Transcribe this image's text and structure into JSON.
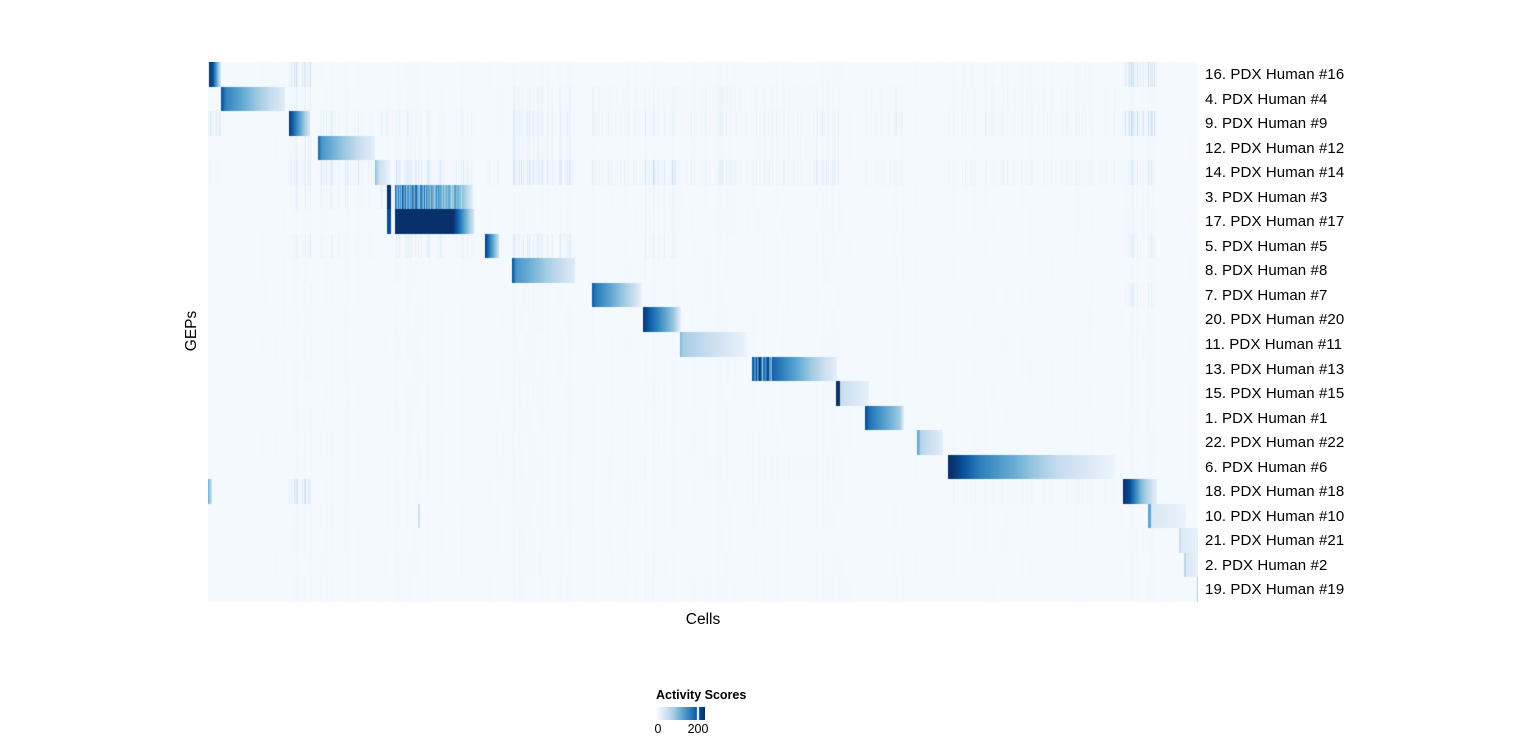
{
  "figure": {
    "x_axis_label": "Cells",
    "y_axis_label": "GEPs"
  },
  "legend": {
    "title": "Activity Scores",
    "tick_labels": [
      "0",
      "200"
    ],
    "tick_values": [
      0,
      200
    ],
    "tick_positions": [
      0,
      0.858
    ]
  },
  "colors": {
    "page_background": "#ffffff",
    "heatmap_background": "#f5f9fd",
    "text": "#000000",
    "colormap_name": "Blues",
    "colormap_stops": [
      "#f7fbff",
      "#deebf7",
      "#c6dbef",
      "#9ecae1",
      "#6baed6",
      "#4292c6",
      "#2171b5",
      "#08519c",
      "#08306b"
    ]
  },
  "chart_data": {
    "type": "heatmap",
    "title": "",
    "xlabel": "Cells",
    "ylabel": "GEPs",
    "value_label": "Activity Scores",
    "value_range": [
      0,
      233
    ],
    "base_value": 3,
    "global_noise": 5,
    "noise_seed": 42,
    "rows": [
      {
        "label": "16. PDX Human #16",
        "segments": [
          [
            0.001,
            0.005,
            235,
            205,
            0
          ],
          [
            0.005,
            0.0131,
            205,
            38,
            0
          ]
        ]
      },
      {
        "label": "4. PDX Human #4",
        "segments": [
          [
            0.0131,
            0.0182,
            212,
            158,
            0
          ],
          [
            0.0182,
            0.0778,
            158,
            26,
            0
          ]
        ]
      },
      {
        "label": "9. PDX Human #9",
        "segments": [
          [
            0.0818,
            0.0869,
            230,
            178,
            0
          ],
          [
            0.0869,
            0.103,
            178,
            40,
            0
          ]
        ]
      },
      {
        "label": "12. PDX Human #12",
        "segments": [
          [
            0.1111,
            0.1152,
            188,
            138,
            0
          ],
          [
            0.1152,
            0.1687,
            138,
            20,
            0
          ]
        ]
      },
      {
        "label": "14. PDX Human #14",
        "segments": [
          [
            0.1687,
            0.1727,
            98,
            52,
            0
          ],
          [
            0.1727,
            0.1848,
            52,
            12,
            0
          ]
        ]
      },
      {
        "label": "3. PDX Human #3",
        "segments": [
          [
            0.1808,
            0.1848,
            235,
            235,
            0
          ],
          [
            0.1889,
            0.2566,
            185,
            118,
            1
          ],
          [
            0.2566,
            0.2677,
            100,
            22,
            0
          ]
        ]
      },
      {
        "label": "17. PDX Human #17",
        "segments": [
          [
            0.1808,
            0.1848,
            208,
            208,
            0
          ],
          [
            0.1889,
            0.2475,
            235,
            235,
            0
          ],
          [
            0.2475,
            0.2687,
            235,
            42,
            0
          ]
        ]
      },
      {
        "label": "5. PDX Human #5",
        "segments": [
          [
            0.2798,
            0.2838,
            230,
            172,
            0
          ],
          [
            0.2838,
            0.2939,
            172,
            52,
            0
          ]
        ]
      },
      {
        "label": "8. PDX Human #8",
        "segments": [
          [
            0.3071,
            0.3111,
            214,
            142,
            0
          ],
          [
            0.3111,
            0.3707,
            142,
            28,
            0
          ]
        ]
      },
      {
        "label": "7. PDX Human #7",
        "segments": [
          [
            0.3879,
            0.3919,
            198,
            168,
            0
          ],
          [
            0.3919,
            0.4283,
            168,
            62,
            0
          ],
          [
            0.4283,
            0.4384,
            62,
            16,
            0
          ]
        ]
      },
      {
        "label": "20. PDX Human #20",
        "segments": [
          [
            0.4394,
            0.4434,
            233,
            206,
            0
          ],
          [
            0.4434,
            0.4707,
            206,
            88,
            0
          ],
          [
            0.4707,
            0.4778,
            88,
            18,
            0
          ]
        ]
      },
      {
        "label": "11. PDX Human #11",
        "segments": [
          [
            0.4768,
            0.4798,
            108,
            82,
            0
          ],
          [
            0.4798,
            0.5444,
            82,
            14,
            0
          ]
        ]
      },
      {
        "label": "13. PDX Human #13",
        "segments": [
          [
            0.5495,
            0.5707,
            208,
            186,
            1
          ],
          [
            0.5707,
            0.6354,
            186,
            20,
            0
          ]
        ]
      },
      {
        "label": "15. PDX Human #15",
        "segments": [
          [
            0.6343,
            0.6384,
            235,
            235,
            0
          ],
          [
            0.6384,
            0.6677,
            56,
            18,
            0
          ]
        ]
      },
      {
        "label": "1. PDX Human #1",
        "segments": [
          [
            0.6636,
            0.6687,
            212,
            172,
            0
          ],
          [
            0.6687,
            0.699,
            172,
            86,
            0
          ],
          [
            0.699,
            0.703,
            86,
            20,
            0
          ]
        ]
      },
      {
        "label": "22. PDX Human #22",
        "segments": [
          [
            0.7162,
            0.7192,
            128,
            100,
            0
          ],
          [
            0.7192,
            0.7424,
            72,
            24,
            0
          ]
        ]
      },
      {
        "label": "6. PDX Human #6",
        "segments": [
          [
            0.7475,
            0.7525,
            235,
            230,
            0
          ],
          [
            0.7525,
            0.7778,
            230,
            166,
            0
          ],
          [
            0.7778,
            0.86,
            166,
            56,
            0
          ],
          [
            0.86,
            0.9162,
            56,
            12,
            0
          ]
        ]
      },
      {
        "label": "18. PDX Human #18",
        "segments": [
          [
            0.0,
            0.004,
            118,
            45,
            0
          ],
          [
            0.9242,
            0.9313,
            235,
            206,
            0
          ],
          [
            0.9313,
            0.9424,
            206,
            106,
            0
          ],
          [
            0.9424,
            0.9586,
            106,
            20,
            0
          ]
        ]
      },
      {
        "label": "10. PDX Human #10",
        "segments": [
          [
            0.2121,
            0.2141,
            48,
            48,
            0
          ],
          [
            0.9495,
            0.9525,
            126,
            126,
            0
          ],
          [
            0.9525,
            0.9879,
            38,
            13,
            0
          ]
        ]
      },
      {
        "label": "21. PDX Human #21",
        "segments": [
          [
            0.9808,
            0.9828,
            56,
            56,
            0
          ],
          [
            0.9828,
            1.0,
            30,
            18,
            0
          ]
        ]
      },
      {
        "label": "2. PDX Human #2",
        "segments": [
          [
            0.9859,
            0.9879,
            66,
            66,
            0
          ],
          [
            0.9879,
            1.0,
            36,
            18,
            0
          ]
        ]
      },
      {
        "label": "19. PDX Human #19",
        "segments": [
          [
            0.9985,
            1.0,
            96,
            60,
            0
          ]
        ]
      }
    ],
    "texture_bands": [
      {
        "x0": 0.0,
        "x1": 0.0131,
        "default": 3,
        "rows": {
          "2": 42,
          "4": 14,
          "17": 0
        }
      },
      {
        "x0": 0.0808,
        "x1": 0.104,
        "default": 8,
        "rows": {
          "0": 52,
          "1": 22,
          "2": 0,
          "3": 24,
          "4": 38,
          "5": 18,
          "7": 26,
          "17": 52
        }
      },
      {
        "x0": 0.1111,
        "x1": 0.1687,
        "default": 7,
        "rows": {
          "2": 26,
          "3": 0,
          "4": 40,
          "5": 20,
          "7": 16
        }
      },
      {
        "x0": 0.1687,
        "x1": 0.1869,
        "default": 6,
        "rows": {
          "2": 20,
          "4": 0,
          "5": 28
        }
      },
      {
        "x0": 0.1889,
        "x1": 0.2677,
        "default": 7,
        "rows": {
          "2": 20,
          "3": 14,
          "4": 38,
          "5": 0,
          "6": 0,
          "7": 26
        }
      },
      {
        "x0": 0.2798,
        "x1": 0.296,
        "default": 5,
        "rows": {
          "4": 20,
          "7": 0
        }
      },
      {
        "x0": 0.3071,
        "x1": 0.3707,
        "default": 8,
        "rows": {
          "1": 20,
          "2": 30,
          "3": 24,
          "4": 42,
          "7": 30,
          "8": 0
        }
      },
      {
        "x0": 0.3879,
        "x1": 0.4384,
        "default": 6,
        "rows": {
          "1": 15,
          "2": 20,
          "4": 26,
          "9": 0
        }
      },
      {
        "x0": 0.4394,
        "x1": 0.4778,
        "default": 8,
        "rows": {
          "1": 20,
          "2": 30,
          "4": 50,
          "5": 20,
          "6": 16,
          "7": 26,
          "10": 0
        }
      },
      {
        "x0": 0.4778,
        "x1": 0.5444,
        "default": 6,
        "rows": {
          "1": 15,
          "2": 22,
          "4": 22,
          "11": 0
        }
      },
      {
        "x0": 0.5495,
        "x1": 0.6384,
        "default": 6,
        "rows": {
          "1": 15,
          "2": 22,
          "3": 15,
          "4": 26,
          "12": 0,
          "16": 13
        }
      },
      {
        "x0": 0.6636,
        "x1": 0.702,
        "default": 6,
        "rows": {
          "1": 16,
          "2": 22,
          "4": 26,
          "14": 0
        }
      },
      {
        "x0": 0.7162,
        "x1": 0.7424,
        "default": 4,
        "rows": {
          "15": 0
        }
      },
      {
        "x0": 0.7475,
        "x1": 0.9162,
        "default": 5,
        "rows": {
          "0": 8,
          "1": 12,
          "2": 16,
          "4": 18,
          "16": 0,
          "17": 14
        }
      },
      {
        "x0": 0.9242,
        "x1": 0.9586,
        "default": 9,
        "rows": {
          "0": 58,
          "2": 70,
          "4": 30,
          "5": 12,
          "6": 20,
          "7": 26,
          "9": 26,
          "17": 0
        }
      },
      {
        "x0": 0.9586,
        "x1": 1.0,
        "default": 4,
        "rows": {
          "18": 0,
          "19": 0,
          "20": 0,
          "21": 0
        }
      }
    ]
  }
}
